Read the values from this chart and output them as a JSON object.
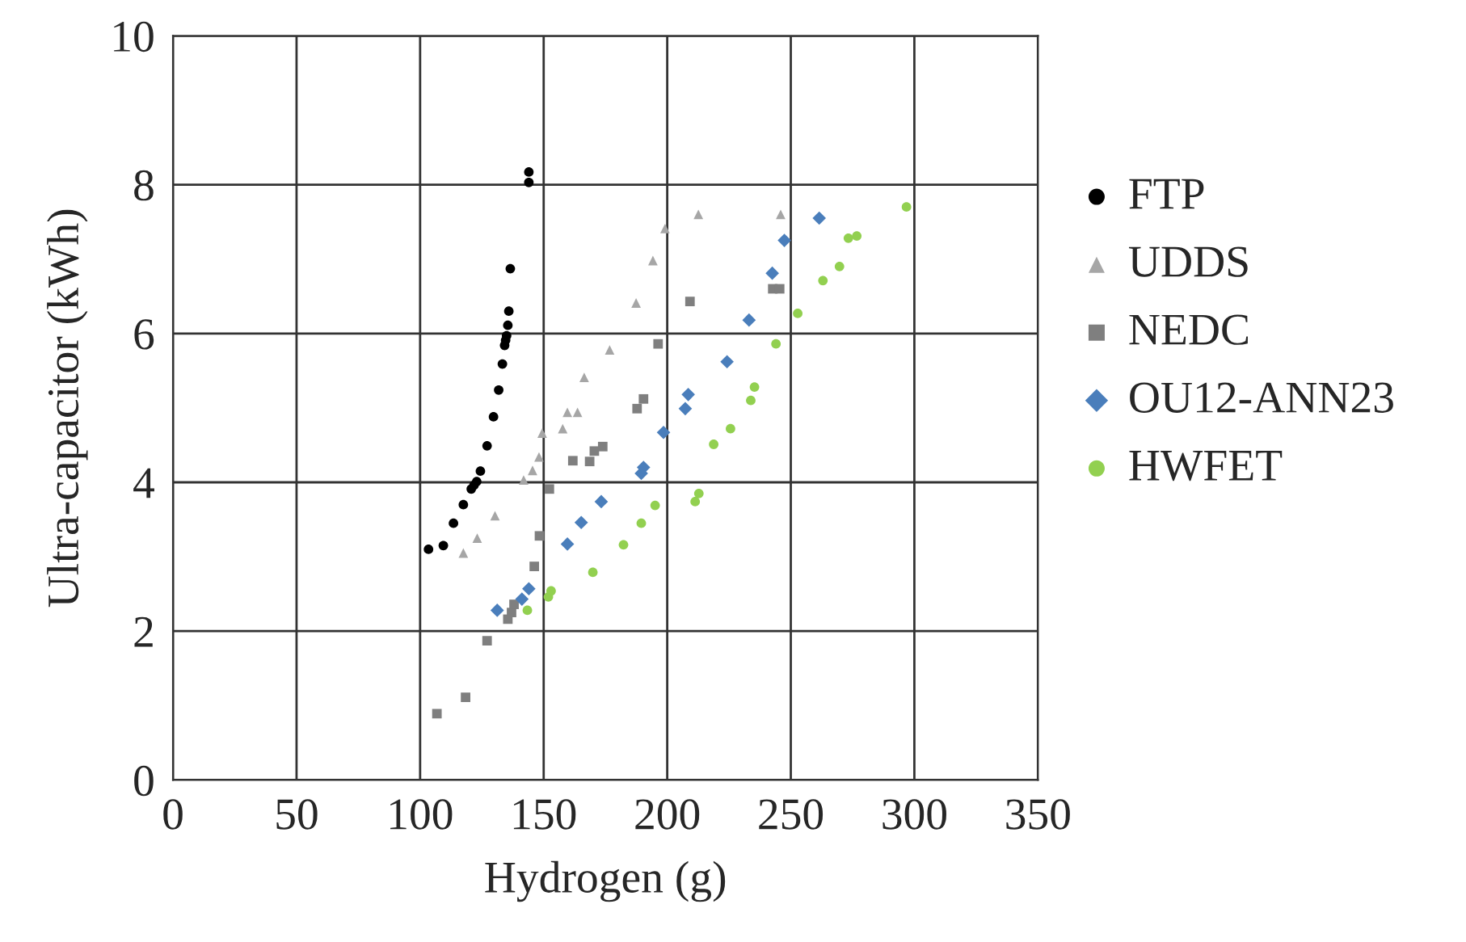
{
  "chart_data": {
    "type": "scatter",
    "xlabel": "Hydrogen (g)",
    "ylabel": "Ultra-capacitor (kWh)",
    "xlim": [
      0,
      350
    ],
    "xticks": [
      0,
      50,
      100,
      150,
      200,
      250,
      300,
      350
    ],
    "ylim": [
      0,
      10
    ],
    "yticks": [
      0,
      2,
      4,
      6,
      8,
      10
    ],
    "grid": true,
    "legend": "right",
    "series": [
      {
        "name": "FTP",
        "color": "#000000",
        "marker": "circle",
        "x": [
          103.4,
          109.4,
          113.5,
          117.5,
          120.7,
          121.8,
          122.9,
          124.4,
          127.1,
          129.7,
          131.8,
          133.3,
          134.2,
          134.6,
          135.0,
          135.5,
          135.9,
          136.5,
          144.0,
          144.0
        ],
        "values": [
          3.1,
          3.15,
          3.45,
          3.7,
          3.91,
          3.96,
          4.01,
          4.15,
          4.49,
          4.88,
          5.24,
          5.59,
          5.84,
          5.91,
          5.97,
          6.11,
          6.3,
          6.87,
          8.03,
          8.17
        ]
      },
      {
        "name": "UDDS",
        "color": "#a6a6a6",
        "marker": "triangle",
        "x": [
          117.5,
          123.1,
          130.3,
          141.9,
          145.5,
          148.1,
          149.4,
          157.7,
          159.6,
          163.7,
          166.4,
          176.7,
          187.4,
          194.2,
          199.1,
          212.6,
          245.9
        ],
        "values": [
          3.05,
          3.25,
          3.55,
          4.03,
          4.16,
          4.34,
          4.66,
          4.72,
          4.94,
          4.94,
          5.41,
          5.78,
          6.41,
          6.98,
          7.41,
          7.6,
          7.6
        ]
      },
      {
        "name": "NEDC",
        "color": "#7f7f7f",
        "marker": "square",
        "x": [
          106.8,
          118.4,
          127.1,
          135.5,
          137.0,
          138.0,
          146.2,
          148.3,
          152.3,
          161.8,
          168.6,
          170.5,
          173.9,
          187.8,
          190.4,
          196.3,
          209.2,
          242.7,
          245.5
        ],
        "values": [
          0.89,
          1.11,
          1.87,
          2.16,
          2.25,
          2.36,
          2.87,
          3.28,
          3.91,
          4.29,
          4.28,
          4.42,
          4.48,
          4.99,
          5.12,
          5.86,
          6.43,
          6.6,
          6.6
        ]
      },
      {
        "name": "OU12-ANN23",
        "color": "#4a7ebb",
        "marker": "diamond",
        "x": [
          131.2,
          141.2,
          144.0,
          159.6,
          165.2,
          173.3,
          189.5,
          190.4,
          198.5,
          207.3,
          208.5,
          224.2,
          233.1,
          242.5,
          247.4,
          261.5
        ],
        "values": [
          2.28,
          2.43,
          2.57,
          3.17,
          3.46,
          3.74,
          4.12,
          4.2,
          4.67,
          4.99,
          5.18,
          5.62,
          6.18,
          6.81,
          7.25,
          7.55
        ]
      },
      {
        "name": "HWFET",
        "color": "#92d050",
        "marker": "circle",
        "x": [
          143.4,
          151.9,
          153.0,
          169.9,
          182.3,
          189.5,
          195.1,
          211.3,
          212.8,
          218.8,
          225.6,
          233.8,
          235.3,
          244.0,
          252.8,
          263.0,
          269.7,
          273.3,
          276.7,
          296.8
        ],
        "values": [
          2.28,
          2.46,
          2.54,
          2.79,
          3.16,
          3.45,
          3.69,
          3.74,
          3.85,
          4.51,
          4.72,
          5.1,
          5.28,
          5.86,
          6.27,
          6.71,
          6.9,
          7.28,
          7.31,
          7.7
        ]
      }
    ]
  }
}
